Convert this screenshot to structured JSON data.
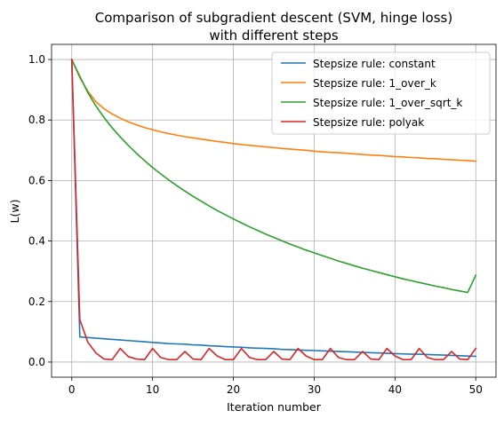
{
  "chart_data": {
    "type": "line",
    "title_line1": "Comparison of subgradient descent (SVM, hinge loss)",
    "title_line2": "with different steps",
    "xlabel": "Iteration number",
    "ylabel": "L(w)",
    "xlim": [
      -2.5,
      52.5
    ],
    "ylim": [
      -0.05,
      1.05
    ],
    "xticks": [
      0,
      10,
      20,
      30,
      40,
      50
    ],
    "xtick_labels": [
      "0",
      "10",
      "20",
      "30",
      "40",
      "50"
    ],
    "yticks": [
      0.0,
      0.2,
      0.4,
      0.6,
      0.8,
      1.0
    ],
    "ytick_labels": [
      "0.0",
      "0.2",
      "0.4",
      "0.6",
      "0.8",
      "1.0"
    ],
    "grid": true,
    "legend_position": "top-right",
    "series": [
      {
        "name": "Stepsize rule: constant",
        "color": "#1f77b4",
        "x": [
          0,
          1,
          2,
          3,
          4,
          5,
          6,
          7,
          8,
          9,
          10,
          11,
          12,
          13,
          14,
          15,
          16,
          17,
          18,
          19,
          20,
          21,
          22,
          23,
          24,
          25,
          26,
          27,
          28,
          29,
          30,
          31,
          32,
          33,
          34,
          35,
          36,
          37,
          38,
          39,
          40,
          41,
          42,
          43,
          44,
          45,
          46,
          47,
          48,
          49,
          50
        ],
        "y": [
          1.0,
          0.083,
          0.081,
          0.079,
          0.077,
          0.075,
          0.073,
          0.071,
          0.069,
          0.067,
          0.065,
          0.063,
          0.061,
          0.06,
          0.059,
          0.057,
          0.056,
          0.054,
          0.053,
          0.051,
          0.05,
          0.049,
          0.047,
          0.046,
          0.045,
          0.044,
          0.042,
          0.041,
          0.04,
          0.039,
          0.038,
          0.037,
          0.036,
          0.035,
          0.034,
          0.033,
          0.032,
          0.031,
          0.03,
          0.029,
          0.028,
          0.027,
          0.026,
          0.026,
          0.025,
          0.024,
          0.023,
          0.022,
          0.021,
          0.02,
          0.019
        ]
      },
      {
        "name": "Stepsize rule: 1_over_k",
        "color": "#ff7f0e",
        "x": [
          0,
          1,
          2,
          3,
          4,
          5,
          6,
          7,
          8,
          9,
          10,
          11,
          12,
          13,
          14,
          15,
          16,
          17,
          18,
          19,
          20,
          21,
          22,
          23,
          24,
          25,
          26,
          27,
          28,
          29,
          30,
          31,
          32,
          33,
          34,
          35,
          36,
          37,
          38,
          39,
          40,
          41,
          42,
          43,
          44,
          45,
          46,
          47,
          48,
          49,
          50
        ],
        "y": [
          1.0,
          0.94,
          0.895,
          0.86,
          0.837,
          0.82,
          0.806,
          0.794,
          0.784,
          0.775,
          0.768,
          0.761,
          0.755,
          0.75,
          0.745,
          0.741,
          0.737,
          0.733,
          0.729,
          0.726,
          0.722,
          0.719,
          0.716,
          0.714,
          0.711,
          0.709,
          0.706,
          0.704,
          0.702,
          0.7,
          0.697,
          0.695,
          0.693,
          0.692,
          0.69,
          0.688,
          0.686,
          0.684,
          0.683,
          0.681,
          0.679,
          0.678,
          0.676,
          0.675,
          0.673,
          0.672,
          0.67,
          0.669,
          0.667,
          0.666,
          0.664
        ]
      },
      {
        "name": "Stepsize rule: 1_over_sqrt_k",
        "color": "#2ca02c",
        "x": [
          0,
          1,
          2,
          3,
          4,
          5,
          6,
          7,
          8,
          9,
          10,
          11,
          12,
          13,
          14,
          15,
          16,
          17,
          18,
          19,
          20,
          21,
          22,
          23,
          24,
          25,
          26,
          27,
          28,
          29,
          30,
          31,
          32,
          33,
          34,
          35,
          36,
          37,
          38,
          39,
          40,
          41,
          42,
          43,
          44,
          45,
          46,
          47,
          48,
          49,
          50
        ],
        "y": [
          1.0,
          0.944,
          0.89,
          0.846,
          0.808,
          0.774,
          0.744,
          0.716,
          0.69,
          0.666,
          0.643,
          0.622,
          0.602,
          0.583,
          0.565,
          0.548,
          0.532,
          0.516,
          0.501,
          0.487,
          0.473,
          0.46,
          0.447,
          0.435,
          0.423,
          0.412,
          0.401,
          0.39,
          0.38,
          0.37,
          0.361,
          0.352,
          0.343,
          0.334,
          0.326,
          0.318,
          0.31,
          0.303,
          0.296,
          0.289,
          0.282,
          0.275,
          0.269,
          0.263,
          0.257,
          0.251,
          0.246,
          0.24,
          0.235,
          0.23,
          0.287
        ]
      },
      {
        "name": "Stepsize rule: polyak",
        "color": "#d62728",
        "x": [
          0,
          1,
          2,
          3,
          4,
          5,
          6,
          7,
          8,
          9,
          10,
          11,
          12,
          13,
          14,
          15,
          16,
          17,
          18,
          19,
          20,
          21,
          22,
          23,
          24,
          25,
          26,
          27,
          28,
          29,
          30,
          31,
          32,
          33,
          34,
          35,
          36,
          37,
          38,
          39,
          40,
          41,
          42,
          43,
          44,
          45,
          46,
          47,
          48,
          49,
          50
        ],
        "y": [
          1.0,
          0.14,
          0.065,
          0.03,
          0.01,
          0.008,
          0.045,
          0.018,
          0.01,
          0.008,
          0.045,
          0.015,
          0.008,
          0.008,
          0.035,
          0.01,
          0.008,
          0.045,
          0.02,
          0.008,
          0.008,
          0.045,
          0.015,
          0.008,
          0.008,
          0.035,
          0.01,
          0.008,
          0.045,
          0.02,
          0.008,
          0.008,
          0.045,
          0.015,
          0.008,
          0.008,
          0.035,
          0.01,
          0.008,
          0.045,
          0.02,
          0.008,
          0.008,
          0.045,
          0.015,
          0.008,
          0.008,
          0.035,
          0.01,
          0.008,
          0.045
        ]
      }
    ]
  }
}
